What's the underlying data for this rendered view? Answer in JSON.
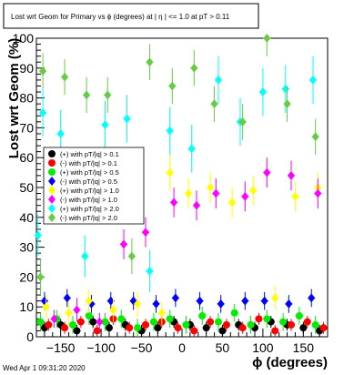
{
  "chart_data": {
    "type": "scatter",
    "title": "Lost wrt Geom for Primary vs ϕ (degrees) at | η | <= 1.0 at pT > 0.11",
    "xlabel": "ϕ (degrees)",
    "ylabel": "Lost wrt Geom (%)",
    "xlim": [
      -180,
      180
    ],
    "ylim": [
      0,
      100
    ],
    "x_ticks": [
      -150,
      -100,
      -50,
      0,
      50,
      100,
      150
    ],
    "x_tick_labels": [
      "−150",
      "−100",
      "−50",
      "0",
      "50",
      "100",
      "150"
    ],
    "y_ticks": [
      0,
      10,
      20,
      30,
      40,
      50,
      60,
      70,
      80,
      90,
      100
    ],
    "y_tick_labels": [
      "0",
      "10",
      "20",
      "30",
      "40",
      "50",
      "60",
      "70",
      "80",
      "90",
      "100"
    ],
    "timestamp": "Wed Apr  1 09:31:20 2020",
    "grid": false,
    "legend_position": "left-middle",
    "series": [
      {
        "name": "(+) with pT/|q| > 0.1",
        "color": "#000000",
        "marker": "circle",
        "x": [
          -170,
          -150,
          -130,
          -110,
          -90,
          -70,
          -50,
          -30,
          -10,
          10,
          30,
          50,
          70,
          90,
          110,
          130,
          150,
          170
        ],
        "y": [
          3,
          4,
          2,
          5,
          3,
          4,
          2,
          3,
          5,
          4,
          3,
          2,
          4,
          3,
          5,
          4,
          3,
          2
        ],
        "err": [
          2,
          2,
          2,
          2,
          2,
          2,
          2,
          2,
          2,
          2,
          2,
          2,
          2,
          2,
          2,
          2,
          2,
          2
        ]
      },
      {
        "name": "(-) with pT/|q| > 0.1",
        "color": "#ff0000",
        "marker": "circle",
        "x": [
          -165,
          -145,
          -125,
          -105,
          -85,
          -65,
          -45,
          -25,
          -5,
          15,
          35,
          55,
          75,
          95,
          115,
          135,
          155,
          175
        ],
        "y": [
          4,
          3,
          5,
          2,
          6,
          3,
          4,
          5,
          3,
          2,
          5,
          4,
          3,
          6,
          2,
          4,
          5,
          3
        ],
        "err": [
          2,
          2,
          2,
          2,
          2,
          2,
          2,
          2,
          2,
          2,
          2,
          2,
          2,
          2,
          2,
          2,
          2,
          2
        ]
      },
      {
        "name": "(+) with pT/|q| > 0.5",
        "color": "#00ee00",
        "marker": "circle",
        "x": [
          -175,
          -155,
          -135,
          -115,
          -95,
          -75,
          -55,
          -35,
          -15,
          5,
          25,
          45,
          65,
          85,
          105,
          125,
          145,
          165
        ],
        "y": [
          5,
          6,
          4,
          7,
          5,
          6,
          3,
          5,
          6,
          4,
          7,
          5,
          8,
          4,
          6,
          5,
          7,
          4
        ],
        "err": [
          3,
          3,
          3,
          3,
          3,
          3,
          3,
          3,
          3,
          3,
          3,
          3,
          3,
          3,
          3,
          3,
          3,
          3
        ]
      },
      {
        "name": "(-) with pT/|q| > 0.5",
        "color": "#0000ff",
        "marker": "diamond",
        "x": [
          -170,
          -142,
          -112,
          -88,
          -60,
          -32,
          -8,
          22,
          48,
          78,
          102,
          132,
          160
        ],
        "y": [
          12,
          13,
          11,
          12,
          12,
          11,
          13,
          12,
          11,
          12,
          12,
          11,
          13
        ],
        "err": [
          3,
          3,
          3,
          3,
          3,
          3,
          3,
          3,
          3,
          3,
          3,
          3,
          3
        ]
      },
      {
        "name": "(+) with pT/|q| > 1.0",
        "color": "#ffff00",
        "marker": "diamond",
        "x": [
          -168,
          -140,
          -115,
          -85,
          -55,
          -25,
          -15,
          8,
          35,
          62,
          88,
          115,
          140,
          168
        ],
        "y": [
          10,
          8,
          12,
          9,
          11,
          8,
          55,
          48,
          50,
          45,
          49,
          13,
          47,
          50
        ],
        "err": [
          4,
          4,
          4,
          4,
          4,
          4,
          6,
          5,
          5,
          5,
          5,
          4,
          5,
          5
        ]
      },
      {
        "name": "(-) with pT/|q| > 1.0",
        "color": "#ff00ff",
        "marker": "diamond",
        "x": [
          -158,
          -130,
          -102,
          -72,
          -45,
          -10,
          18,
          42,
          78,
          105,
          135,
          168
        ],
        "y": [
          6,
          9,
          5,
          31,
          35,
          45,
          44,
          48,
          47,
          55,
          54,
          48
        ],
        "err": [
          3,
          4,
          3,
          5,
          5,
          5,
          5,
          5,
          5,
          5,
          5,
          5
        ]
      },
      {
        "name": "(+) with pT/|q| > 2.0",
        "color": "#00ffff",
        "marker": "diamond",
        "x": [
          -178,
          -172,
          -150,
          -120,
          -95,
          -68,
          -40,
          -15,
          12,
          45,
          72,
          100,
          128,
          162
        ],
        "y": [
          34,
          75,
          68,
          27,
          71,
          73,
          22,
          69,
          63,
          86,
          72,
          82,
          83,
          86
        ],
        "err": [
          7,
          8,
          8,
          7,
          8,
          8,
          7,
          8,
          8,
          8,
          8,
          8,
          8,
          8
        ]
      },
      {
        "name": "(-) with pT/|q| > 2.0",
        "color": "#66cc44",
        "marker": "diamond",
        "x": [
          -175,
          -172,
          -145,
          -118,
          -92,
          -62,
          -40,
          -12,
          15,
          40,
          75,
          105,
          130,
          165
        ],
        "y": [
          20,
          89,
          87,
          81,
          81,
          27,
          92,
          84,
          90,
          78,
          72,
          100,
          78,
          67
        ],
        "err": [
          6,
          6,
          6,
          6,
          6,
          6,
          6,
          6,
          6,
          6,
          6,
          6,
          6,
          6
        ]
      }
    ]
  }
}
